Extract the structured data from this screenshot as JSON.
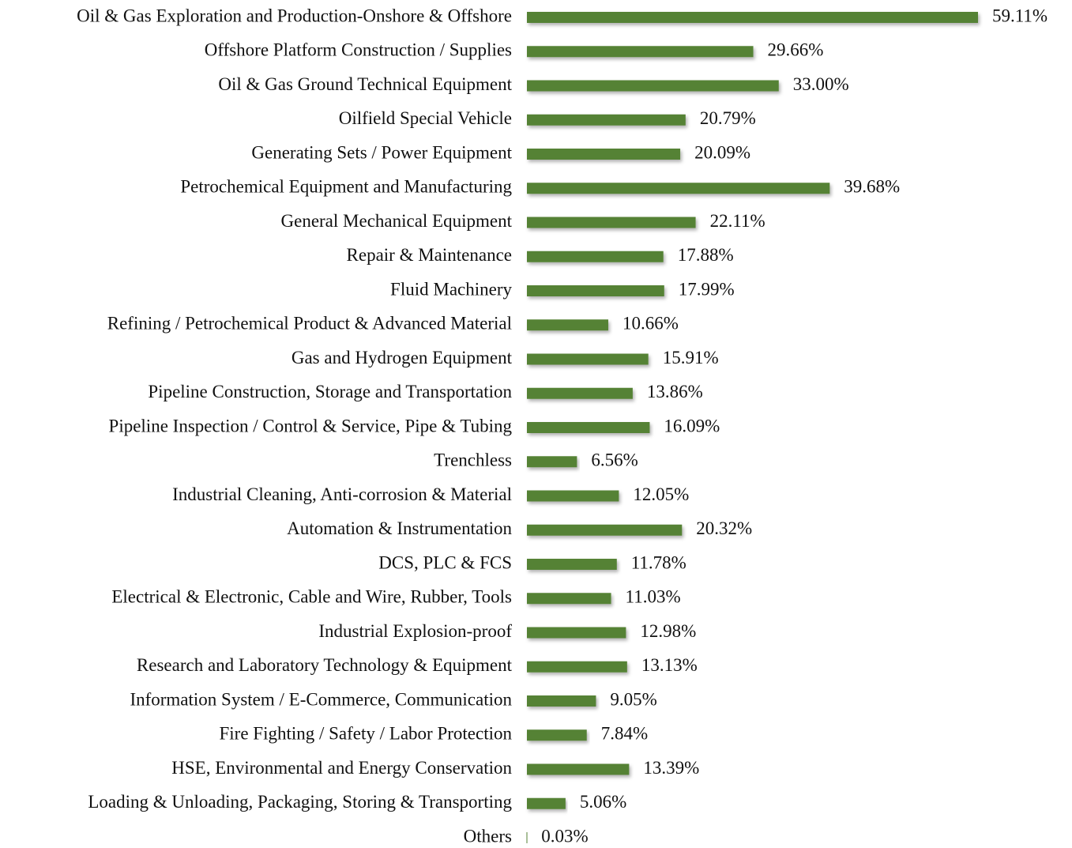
{
  "chart_data": {
    "type": "bar",
    "orientation": "horizontal",
    "color": "#548235",
    "categories": [
      "Oil & Gas Exploration and Production-Onshore & Offshore",
      "Offshore Platform Construction / Supplies",
      "Oil & Gas Ground Technical Equipment",
      "Oilfield Special Vehicle",
      "Generating Sets / Power Equipment",
      "Petrochemical Equipment and Manufacturing",
      "General Mechanical Equipment",
      "Repair & Maintenance",
      "Fluid Machinery",
      "Refining / Petrochemical Product & Advanced Material",
      "Gas and Hydrogen Equipment",
      "Pipeline Construction, Storage and Transportation",
      "Pipeline Inspection / Control & Service, Pipe & Tubing",
      "Trenchless",
      "Industrial Cleaning, Anti-corrosion & Material",
      "Automation & Instrumentation",
      "DCS, PLC & FCS",
      "Electrical & Electronic, Cable and Wire, Rubber, Tools",
      "Industrial Explosion-proof",
      "Research and Laboratory Technology & Equipment",
      "Information System / E-Commerce, Communication",
      "Fire Fighting / Safety / Labor Protection",
      "HSE, Environmental and Energy Conservation",
      "Loading & Unloading, Packaging, Storing & Transporting",
      "Others"
    ],
    "values": [
      59.11,
      29.66,
      33.0,
      20.79,
      20.09,
      39.68,
      22.11,
      17.88,
      17.99,
      10.66,
      15.91,
      13.86,
      16.09,
      6.56,
      12.05,
      20.32,
      11.78,
      11.03,
      12.98,
      13.13,
      9.05,
      7.84,
      13.39,
      5.06,
      0.03
    ],
    "value_labels": [
      "59.11%",
      "29.66%",
      "33.00%",
      "20.79%",
      "20.09%",
      "39.68%",
      "22.11%",
      "17.88%",
      "17.99%",
      "10.66%",
      "15.91%",
      "13.86%",
      "16.09%",
      "6.56%",
      "12.05%",
      "20.32%",
      "11.78%",
      "11.03%",
      "12.98%",
      "13.13%",
      "9.05%",
      "7.84%",
      "13.39%",
      "5.06%",
      "0.03%"
    ]
  }
}
